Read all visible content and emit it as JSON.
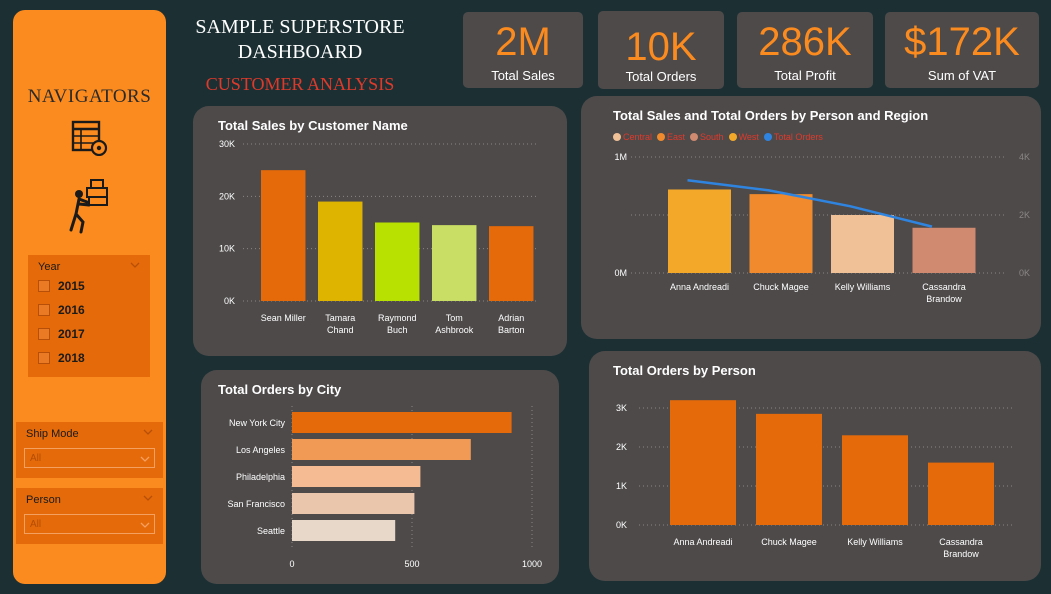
{
  "title_line1": "SAMPLE SUPERSTORE",
  "title_line2": "DASHBOARD",
  "subtitle": "CUSTOMER ANALYSIS",
  "sidebar": {
    "title": "NAVIGATORS",
    "icons": [
      "table-settings-icon",
      "person-carrying-boxes-icon"
    ],
    "year_slicer": {
      "label": "Year",
      "options": [
        "2015",
        "2016",
        "2017",
        "2018"
      ]
    },
    "ship_mode": {
      "label": "Ship Mode",
      "value": "All"
    },
    "person": {
      "label": "Person",
      "value": "All"
    }
  },
  "kpis": [
    {
      "value": "2M",
      "label": "Total Sales"
    },
    {
      "value": "10K",
      "label": "Total Orders"
    },
    {
      "value": "286K",
      "label": "Total Profit"
    },
    {
      "value": "$172K",
      "label": "Sum of VAT"
    }
  ],
  "colors": {
    "accent": "#fb8b1e",
    "panel": "#4e4a4a",
    "background": "#1c3034",
    "subtitle": "#e0392a"
  },
  "chart_data": [
    {
      "type": "bar",
      "title": "Total Sales by Customer Name",
      "categories": [
        [
          "Sean Miller"
        ],
        [
          "Tamara",
          "Chand"
        ],
        [
          "Raymond",
          "Buch"
        ],
        [
          "Tom",
          "Ashbrook"
        ],
        [
          "Adrian",
          "Barton"
        ]
      ],
      "values": [
        25000,
        19000,
        15000,
        14500,
        14300
      ],
      "colors": [
        "#e56a0a",
        "#dfb400",
        "#b8e000",
        "#c8de64",
        "#e56a0a"
      ],
      "yticks": [
        "0K",
        "10K",
        "20K",
        "30K"
      ],
      "ylim": [
        0,
        30000
      ]
    },
    {
      "type": "bar",
      "title": "Total Sales and Total Orders by Person and Region",
      "legend": [
        {
          "name": "Central",
          "color": "#f0c096"
        },
        {
          "name": "East",
          "color": "#f08a2c"
        },
        {
          "name": "South",
          "color": "#cf8a70"
        },
        {
          "name": "West",
          "color": "#f3a82a"
        },
        {
          "name": "Total Orders",
          "color": "#2f84e0"
        }
      ],
      "categories": [
        [
          "Anna Andreadi"
        ],
        [
          "Chuck Magee"
        ],
        [
          "Kelly Williams"
        ],
        [
          "Cassandra",
          "Brandow"
        ]
      ],
      "values": [
        720000,
        680000,
        500000,
        390000
      ],
      "colors": [
        "#f3a82a",
        "#f08a2c",
        "#f0c096",
        "#cf8a70"
      ],
      "line_values": [
        3200,
        2850,
        2300,
        1600
      ],
      "yticks_left": [
        "0M",
        "1M"
      ],
      "yticks_right": [
        "0K",
        "2K",
        "4K"
      ],
      "ylim": [
        0,
        1000000
      ],
      "y2lim": [
        0,
        4000
      ]
    },
    {
      "type": "bar",
      "orientation": "horizontal",
      "title": "Total Orders by City",
      "categories": [
        "New York City",
        "Los Angeles",
        "Philadelphia",
        "San Francisco",
        "Seattle"
      ],
      "values": [
        915,
        745,
        535,
        510,
        430
      ],
      "colors": [
        "#e56a0a",
        "#f09a56",
        "#f5bb92",
        "#eac6ad",
        "#e8d8ca"
      ],
      "xticks": [
        "0",
        "500",
        "1000"
      ],
      "xlim": [
        0,
        1000
      ]
    },
    {
      "type": "bar",
      "title": "Total Orders by Person",
      "categories": [
        [
          "Anna Andreadi"
        ],
        [
          "Chuck Magee"
        ],
        [
          "Kelly Williams"
        ],
        [
          "Cassandra",
          "Brandow"
        ]
      ],
      "values": [
        3200,
        2850,
        2300,
        1600
      ],
      "colors": [
        "#e56a0a",
        "#e56a0a",
        "#e56a0a",
        "#e56a0a"
      ],
      "yticks": [
        "0K",
        "1K",
        "2K",
        "3K"
      ],
      "ylim": [
        0,
        3000
      ]
    }
  ]
}
